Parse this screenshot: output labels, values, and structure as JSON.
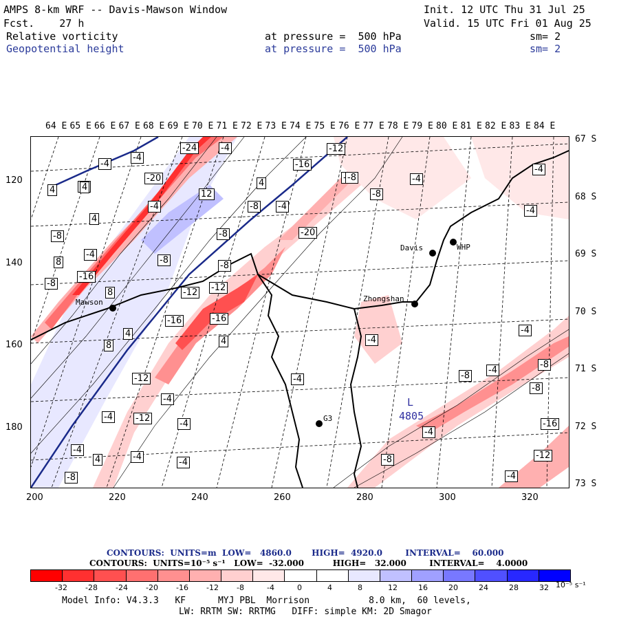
{
  "header": {
    "title": "AMPS 8-km WRF -- Davis-Mawson Window",
    "fcst": "Fcst.    27 h",
    "init": "Init. 12 UTC Thu 31 Jul 25",
    "valid": "Valid. 15 UTC Fri 01 Aug 25",
    "field1_name": "Relative vorticity",
    "field1_level": "at pressure =  500 hPa",
    "field1_sm": "sm= 2",
    "field2_name": "Geopotential height",
    "field2_level": "at pressure =  500 hPa",
    "field2_sm": "sm= 2"
  },
  "map": {
    "lon_labels": [
      "64 E",
      "65 E",
      "66 E",
      "67 E",
      "68 E",
      "69 E",
      "70 E",
      "71 E",
      "72 E",
      "73 E",
      "74 E",
      "75 E",
      "76 E",
      "77 E",
      "78 E",
      "79 E",
      "80 E",
      "81 E",
      "82 E",
      "83 E",
      "84 E"
    ],
    "lat_labels": [
      "67 S",
      "68 S",
      "69 S",
      "70 S",
      "71 S",
      "72 S",
      "73 S"
    ],
    "y_labels": [
      "120",
      "140",
      "160",
      "180"
    ],
    "x_labels": [
      "200",
      "220",
      "240",
      "260",
      "280",
      "300",
      "320"
    ],
    "stations": [
      "Mawson",
      "Davis",
      "WHP",
      "Zhongshan",
      "G3"
    ],
    "low_marker": "L",
    "low_value": "4805",
    "contour_labels": [
      "-24",
      "-4",
      "-4",
      "-4",
      "-12",
      "-16",
      "-20",
      "-8",
      "4",
      "4",
      "-8",
      "-4",
      "12",
      "-4",
      "-8",
      "-4",
      "-8",
      "-4",
      "-4",
      "4",
      "-8",
      "-8",
      "-4",
      "-8",
      "-20",
      "8",
      "-16",
      "-8",
      "-8",
      "-12",
      "-12",
      "-16",
      "-16",
      "4",
      "8",
      "8",
      "4",
      "-4",
      "-4",
      "-12",
      "-8",
      "-4",
      "-4",
      "-8",
      "-8",
      "-4",
      "-4",
      "-12",
      "-4",
      "-4",
      "-16",
      "-12",
      "-4",
      "-8",
      "-4",
      "4",
      "-4",
      "-4",
      "-8",
      "-8",
      "4"
    ]
  },
  "footer": {
    "contours1": "CONTOURS:  UNITS=m  LOW=   4860.0       HIGH=  4920.0        INTERVAL=    60.000",
    "contours2": "CONTOURS:  UNITS=10⁻⁵ s⁻¹   LOW=  -32.000          HIGH=   32.000        INTERVAL=    4.0000",
    "colorbar_labels": [
      "-32",
      "-28",
      "-24",
      "-20",
      "-16",
      "-12",
      "-8",
      "-4",
      "0",
      "4",
      "8",
      "12",
      "16",
      "20",
      "24",
      "28",
      "32"
    ],
    "colorbar_unit": "10⁻⁵ s⁻¹",
    "colorbar_colors": [
      "#ff0000",
      "#ff3030",
      "#ff5050",
      "#ff7070",
      "#ff9090",
      "#ffb0b0",
      "#ffd0d0",
      "#ffe8e8",
      "#ffffff",
      "#ffffff",
      "#e8e8ff",
      "#c0c0ff",
      "#a0a0ff",
      "#7878ff",
      "#5050ff",
      "#2828ff",
      "#0000ff"
    ],
    "info1": "Model Info: V4.3.3   KF      MYJ PBL  Morrison           8.0 km,  60 levels,",
    "info2": "LW: RRTM SW: RRTMG   DIFF: simple KM: 2D Smagor"
  }
}
